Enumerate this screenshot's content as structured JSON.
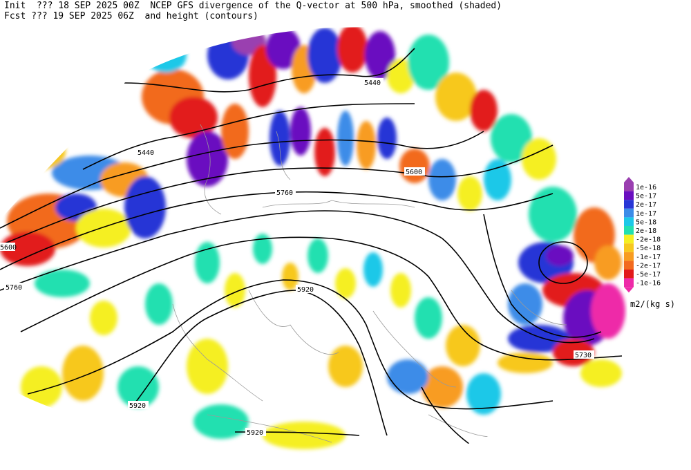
{
  "header": {
    "init_line": "Init  ??? 18 SEP 2025 00Z  NCEP GFS divergence of the Q-vector at 500 hPa, smoothed (shaded)",
    "fcst_line": "Fcst ??? 19 SEP 2025 06Z  and height (contours)"
  },
  "contour_labels": [
    "5440",
    "5440",
    "5600",
    "5760",
    "5600",
    "5760",
    "5920",
    "5920",
    "5920",
    "5730"
  ],
  "legend": {
    "units": "m2/(kg s)",
    "entries": [
      {
        "label": "1e-16",
        "color": "#9a3fb0"
      },
      {
        "label": "5e-17",
        "color": "#6a0fc0"
      },
      {
        "label": "2e-17",
        "color": "#2836d6"
      },
      {
        "label": "1e-17",
        "color": "#3c8ce8"
      },
      {
        "label": "5e-18",
        "color": "#1cc8e8"
      },
      {
        "label": "2e-18",
        "color": "#22e0b0"
      },
      {
        "label": "-2e-18",
        "color": "#f5ef22"
      },
      {
        "label": "-5e-18",
        "color": "#f7c81e"
      },
      {
        "label": "-1e-17",
        "color": "#f89c20"
      },
      {
        "label": "-2e-17",
        "color": "#f26a1e"
      },
      {
        "label": "-5e-17",
        "color": "#e21a1a"
      },
      {
        "label": "-1e-16",
        "color": "#ee2aa8"
      }
    ]
  }
}
